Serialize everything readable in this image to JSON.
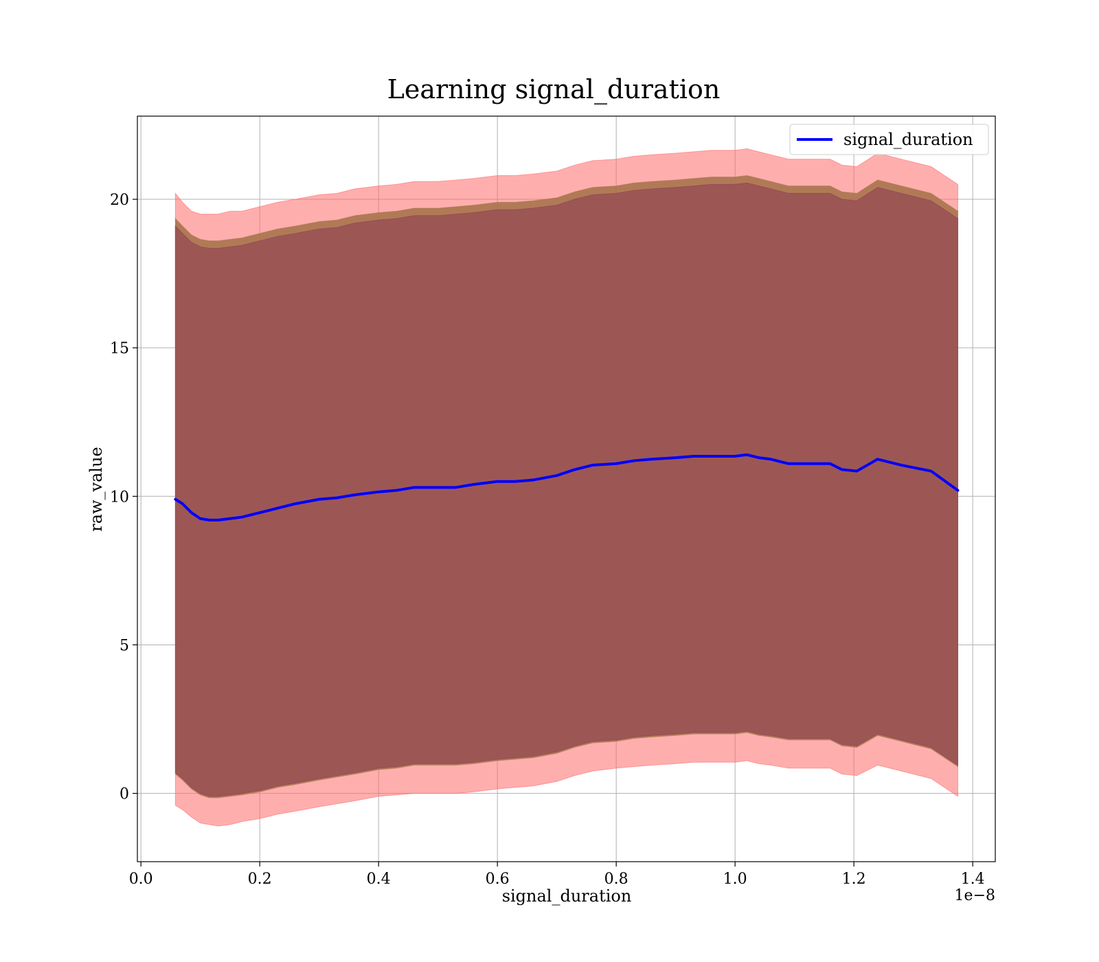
{
  "chart_data": {
    "type": "line",
    "title": "Learning signal_duration",
    "xlabel": "signal_duration",
    "ylabel": "raw_value",
    "x_offset_text": "1e−8",
    "x_scale_exponent": -8,
    "xlim": [
      -0.006,
      1.438
    ],
    "ylim": [
      -2.3,
      22.8
    ],
    "x_ticks": [
      0.0,
      0.2,
      0.4,
      0.6,
      0.8,
      1.0,
      1.2,
      1.4
    ],
    "x_tick_labels": [
      "0.0",
      "0.2",
      "0.4",
      "0.6",
      "0.8",
      "1.0",
      "1.2",
      "1.4"
    ],
    "y_ticks": [
      0,
      5,
      10,
      15,
      20
    ],
    "y_tick_labels": [
      "0",
      "5",
      "10",
      "15",
      "20"
    ],
    "grid": true,
    "legend": {
      "position": "top-right",
      "entries": [
        "signal_duration"
      ]
    },
    "colors": {
      "line": "#0000ff",
      "outer_band": "#ff6b6b",
      "middle_band": "#a8744d",
      "inner_band": "#8a3a56"
    },
    "x": [
      0.058,
      0.07,
      0.085,
      0.1,
      0.115,
      0.13,
      0.15,
      0.17,
      0.2,
      0.23,
      0.26,
      0.3,
      0.33,
      0.36,
      0.4,
      0.43,
      0.46,
      0.5,
      0.53,
      0.56,
      0.6,
      0.63,
      0.66,
      0.7,
      0.73,
      0.76,
      0.8,
      0.83,
      0.86,
      0.9,
      0.93,
      0.96,
      1.0,
      1.02,
      1.04,
      1.06,
      1.09,
      1.12,
      1.16,
      1.18,
      1.205,
      1.24,
      1.28,
      1.33,
      1.375
    ],
    "series": [
      {
        "name": "signal_duration",
        "values": [
          9.9,
          9.75,
          9.45,
          9.25,
          9.2,
          9.2,
          9.25,
          9.3,
          9.45,
          9.6,
          9.75,
          9.9,
          9.95,
          10.05,
          10.15,
          10.2,
          10.3,
          10.3,
          10.3,
          10.4,
          10.5,
          10.5,
          10.55,
          10.7,
          10.9,
          11.05,
          11.1,
          11.2,
          11.25,
          11.3,
          11.35,
          11.35,
          11.35,
          11.4,
          11.3,
          11.25,
          11.1,
          11.1,
          11.1,
          10.9,
          10.85,
          11.25,
          11.05,
          10.85,
          10.2
        ]
      }
    ],
    "bands": [
      {
        "level": "outer",
        "upper": [
          20.2,
          19.9,
          19.6,
          19.5,
          19.5,
          19.5,
          19.6,
          19.6,
          19.75,
          19.9,
          20.0,
          20.15,
          20.2,
          20.35,
          20.45,
          20.5,
          20.6,
          20.6,
          20.65,
          20.7,
          20.8,
          20.8,
          20.85,
          20.95,
          21.15,
          21.3,
          21.35,
          21.45,
          21.5,
          21.55,
          21.6,
          21.65,
          21.65,
          21.7,
          21.6,
          21.5,
          21.35,
          21.35,
          21.35,
          21.15,
          21.1,
          21.55,
          21.35,
          21.1,
          20.5
        ]
      },
      {
        "level": "outer",
        "lower": [
          -0.4,
          -0.55,
          -0.8,
          -1.0,
          -1.05,
          -1.1,
          -1.05,
          -0.95,
          -0.85,
          -0.7,
          -0.6,
          -0.45,
          -0.35,
          -0.25,
          -0.1,
          -0.05,
          0.0,
          0.0,
          0.0,
          0.05,
          0.15,
          0.2,
          0.25,
          0.4,
          0.6,
          0.75,
          0.85,
          0.9,
          0.95,
          1.0,
          1.05,
          1.05,
          1.05,
          1.1,
          1.0,
          0.95,
          0.85,
          0.85,
          0.85,
          0.65,
          0.6,
          0.95,
          0.75,
          0.5,
          -0.1
        ]
      },
      {
        "level": "middle",
        "upper": [
          19.35,
          19.1,
          18.8,
          18.65,
          18.6,
          18.6,
          18.65,
          18.7,
          18.85,
          19.0,
          19.1,
          19.25,
          19.3,
          19.45,
          19.55,
          19.6,
          19.7,
          19.7,
          19.75,
          19.8,
          19.9,
          19.9,
          19.95,
          20.05,
          20.25,
          20.4,
          20.45,
          20.55,
          20.6,
          20.65,
          20.7,
          20.75,
          20.75,
          20.8,
          20.7,
          20.6,
          20.45,
          20.45,
          20.45,
          20.25,
          20.2,
          20.65,
          20.45,
          20.2,
          19.6
        ]
      },
      {
        "level": "middle",
        "lower": [
          0.65,
          0.45,
          0.15,
          -0.05,
          -0.15,
          -0.15,
          -0.1,
          -0.05,
          0.05,
          0.2,
          0.3,
          0.45,
          0.55,
          0.65,
          0.8,
          0.85,
          0.95,
          0.95,
          0.95,
          1.0,
          1.1,
          1.15,
          1.2,
          1.35,
          1.55,
          1.7,
          1.75,
          1.85,
          1.9,
          1.95,
          2.0,
          2.0,
          2.0,
          2.05,
          1.95,
          1.9,
          1.8,
          1.8,
          1.8,
          1.6,
          1.55,
          1.95,
          1.75,
          1.5,
          0.9
        ]
      },
      {
        "level": "inner",
        "upper": [
          19.1,
          18.85,
          18.55,
          18.4,
          18.35,
          18.35,
          18.4,
          18.45,
          18.6,
          18.75,
          18.85,
          19.0,
          19.05,
          19.2,
          19.3,
          19.35,
          19.45,
          19.45,
          19.5,
          19.55,
          19.65,
          19.65,
          19.7,
          19.8,
          20.0,
          20.15,
          20.2,
          20.3,
          20.35,
          20.4,
          20.45,
          20.5,
          20.5,
          20.55,
          20.45,
          20.35,
          20.2,
          20.2,
          20.2,
          20.0,
          19.95,
          20.4,
          20.2,
          19.95,
          19.35
        ]
      },
      {
        "level": "inner",
        "lower": [
          0.7,
          0.5,
          0.2,
          0.0,
          -0.1,
          -0.1,
          -0.05,
          0.0,
          0.1,
          0.25,
          0.35,
          0.5,
          0.6,
          0.7,
          0.85,
          0.9,
          1.0,
          1.0,
          1.0,
          1.05,
          1.15,
          1.2,
          1.25,
          1.4,
          1.6,
          1.75,
          1.8,
          1.9,
          1.95,
          2.0,
          2.05,
          2.05,
          2.05,
          2.1,
          2.0,
          1.95,
          1.85,
          1.85,
          1.85,
          1.65,
          1.6,
          2.0,
          1.8,
          1.55,
          0.95
        ]
      }
    ]
  }
}
